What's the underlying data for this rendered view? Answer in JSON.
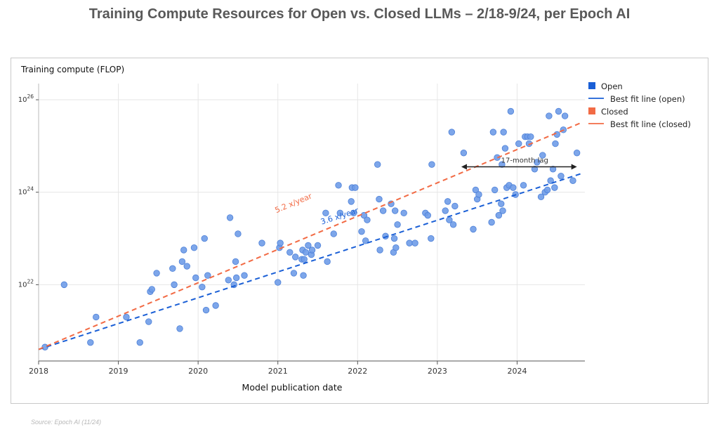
{
  "page_title": "Training Compute Resources for Open vs. Closed LLMs – 2/18-9/24, per Epoch AI",
  "source_note": "Source: Epoch AI (11/24)",
  "colors": {
    "open": "#1a5fd6",
    "open_marker": "#6f9ce8",
    "closed": "#f26b45",
    "lag_arrow": "#222222",
    "grid": "#e6e6e6",
    "axis_text": "#333333"
  },
  "chart_data": {
    "type": "scatter",
    "ylabel": "Training compute (FLOP)",
    "xlabel": "Model publication date",
    "x_ticks": [
      "2018",
      "2019",
      "2020",
      "2021",
      "2022",
      "2023",
      "2024"
    ],
    "y_ticks": [
      {
        "base": "10",
        "exp": "22",
        "value": 1e+22
      },
      {
        "base": "10",
        "exp": "24",
        "value": 1e+24
      },
      {
        "base": "10",
        "exp": "26",
        "value": 1e+26
      }
    ],
    "y_scale": "log",
    "xlim": [
      2018.0,
      2024.85
    ],
    "ylim_log10": [
      20.35,
      26.35
    ],
    "grid": true,
    "legend_position": "right",
    "legend": [
      {
        "label": "Open",
        "kind": "square",
        "color": "#1a5fd6"
      },
      {
        "label": "Best fit line (open)",
        "kind": "line",
        "color": "#1a5fd6"
      },
      {
        "label": "Closed",
        "kind": "square",
        "color": "#f26b45"
      },
      {
        "label": "Best fit line (closed)",
        "kind": "line",
        "color": "#f26b45"
      }
    ],
    "fit_lines": [
      {
        "name": "Best fit line (open)",
        "color": "#1a5fd6",
        "x": [
          2018.0,
          2024.8
        ],
        "log10_y": [
          20.6,
          24.4
        ],
        "label": "3.6 x/year",
        "label_at": [
          2021.55,
          23.3
        ]
      },
      {
        "name": "Best fit line (closed)",
        "color": "#f26b45",
        "x": [
          2018.0,
          2024.8
        ],
        "log10_y": [
          20.6,
          25.5
        ],
        "label": "5.2 x/year",
        "label_at": [
          2020.98,
          23.55
        ]
      }
    ],
    "annotation": {
      "text": "17-month lag",
      "x_from": 2023.3,
      "x_to": 2024.75,
      "log10_y": 24.55
    },
    "points_log10": [
      [
        2018.08,
        20.65
      ],
      [
        2018.32,
        22.0
      ],
      [
        2018.65,
        20.75
      ],
      [
        2018.72,
        21.3
      ],
      [
        2019.1,
        21.3
      ],
      [
        2019.27,
        20.75
      ],
      [
        2019.38,
        21.2
      ],
      [
        2019.4,
        21.85
      ],
      [
        2019.42,
        21.9
      ],
      [
        2019.48,
        22.25
      ],
      [
        2019.68,
        22.35
      ],
      [
        2019.7,
        22.0
      ],
      [
        2019.77,
        21.05
      ],
      [
        2019.8,
        22.5
      ],
      [
        2019.82,
        22.75
      ],
      [
        2019.86,
        22.4
      ],
      [
        2019.95,
        22.8
      ],
      [
        2019.97,
        22.15
      ],
      [
        2020.05,
        21.95
      ],
      [
        2020.08,
        23.0
      ],
      [
        2020.1,
        21.45
      ],
      [
        2020.12,
        22.2
      ],
      [
        2020.22,
        21.55
      ],
      [
        2020.38,
        22.1
      ],
      [
        2020.4,
        23.45
      ],
      [
        2020.45,
        22.0
      ],
      [
        2020.47,
        22.5
      ],
      [
        2020.48,
        22.15
      ],
      [
        2020.5,
        23.1
      ],
      [
        2020.58,
        22.2
      ],
      [
        2020.8,
        22.9
      ],
      [
        2021.0,
        22.05
      ],
      [
        2021.02,
        22.8
      ],
      [
        2021.03,
        22.9
      ],
      [
        2021.15,
        22.7
      ],
      [
        2021.2,
        22.25
      ],
      [
        2021.22,
        22.6
      ],
      [
        2021.3,
        22.55
      ],
      [
        2021.31,
        22.75
      ],
      [
        2021.32,
        22.2
      ],
      [
        2021.33,
        22.55
      ],
      [
        2021.35,
        22.7
      ],
      [
        2021.38,
        22.85
      ],
      [
        2021.42,
        22.65
      ],
      [
        2021.43,
        22.75
      ],
      [
        2021.5,
        22.85
      ],
      [
        2021.6,
        23.55
      ],
      [
        2021.62,
        22.5
      ],
      [
        2021.7,
        23.1
      ],
      [
        2021.76,
        24.15
      ],
      [
        2021.78,
        23.55
      ],
      [
        2021.92,
        23.8
      ],
      [
        2021.93,
        24.1
      ],
      [
        2021.95,
        23.55
      ],
      [
        2021.97,
        24.1
      ],
      [
        2022.05,
        23.15
      ],
      [
        2022.08,
        23.5
      ],
      [
        2022.1,
        22.95
      ],
      [
        2022.12,
        23.4
      ],
      [
        2022.25,
        24.6
      ],
      [
        2022.27,
        23.85
      ],
      [
        2022.28,
        22.75
      ],
      [
        2022.32,
        23.6
      ],
      [
        2022.35,
        23.05
      ],
      [
        2022.42,
        23.75
      ],
      [
        2022.45,
        22.7
      ],
      [
        2022.46,
        23.0
      ],
      [
        2022.47,
        23.6
      ],
      [
        2022.48,
        22.8
      ],
      [
        2022.5,
        23.3
      ],
      [
        2022.58,
        23.55
      ],
      [
        2022.65,
        22.9
      ],
      [
        2022.72,
        22.9
      ],
      [
        2022.85,
        23.55
      ],
      [
        2022.88,
        23.5
      ],
      [
        2022.92,
        23.0
      ],
      [
        2022.93,
        24.6
      ],
      [
        2023.1,
        23.6
      ],
      [
        2023.13,
        23.8
      ],
      [
        2023.15,
        23.4
      ],
      [
        2023.18,
        25.3
      ],
      [
        2023.2,
        23.3
      ],
      [
        2023.22,
        23.7
      ],
      [
        2023.33,
        24.85
      ],
      [
        2023.45,
        23.2
      ],
      [
        2023.48,
        24.05
      ],
      [
        2023.5,
        23.85
      ],
      [
        2023.52,
        23.95
      ],
      [
        2023.68,
        23.35
      ],
      [
        2023.7,
        25.3
      ],
      [
        2023.72,
        24.05
      ],
      [
        2023.75,
        24.75
      ],
      [
        2023.77,
        23.5
      ],
      [
        2023.8,
        23.75
      ],
      [
        2023.81,
        24.6
      ],
      [
        2023.82,
        23.6
      ],
      [
        2023.83,
        25.3
      ],
      [
        2023.85,
        24.95
      ],
      [
        2023.87,
        24.1
      ],
      [
        2023.9,
        24.15
      ],
      [
        2023.92,
        25.75
      ],
      [
        2023.95,
        24.1
      ],
      [
        2023.98,
        23.95
      ],
      [
        2024.02,
        25.05
      ],
      [
        2024.08,
        24.15
      ],
      [
        2024.1,
        25.2
      ],
      [
        2024.13,
        25.2
      ],
      [
        2024.15,
        25.05
      ],
      [
        2024.17,
        25.2
      ],
      [
        2024.22,
        24.5
      ],
      [
        2024.25,
        24.65
      ],
      [
        2024.3,
        23.9
      ],
      [
        2024.32,
        24.8
      ],
      [
        2024.35,
        24.0
      ],
      [
        2024.38,
        24.05
      ],
      [
        2024.4,
        25.65
      ],
      [
        2024.42,
        24.25
      ],
      [
        2024.45,
        24.5
      ],
      [
        2024.47,
        24.1
      ],
      [
        2024.48,
        25.05
      ],
      [
        2024.5,
        25.25
      ],
      [
        2024.52,
        25.75
      ],
      [
        2024.55,
        24.35
      ],
      [
        2024.58,
        25.35
      ],
      [
        2024.6,
        25.65
      ],
      [
        2024.7,
        24.25
      ],
      [
        2024.75,
        24.85
      ]
    ]
  }
}
